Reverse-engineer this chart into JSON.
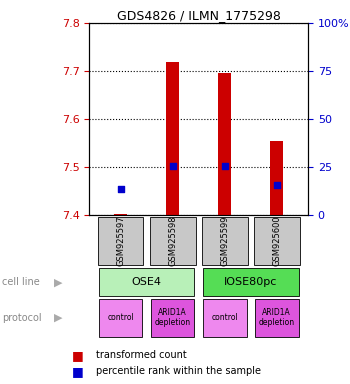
{
  "title": "GDS4826 / ILMN_1775298",
  "samples": [
    "GSM925597",
    "GSM925598",
    "GSM925599",
    "GSM925600"
  ],
  "red_values": [
    7.403,
    7.718,
    7.695,
    7.555
  ],
  "blue_values": [
    7.454,
    7.502,
    7.502,
    7.463
  ],
  "ylim": [
    7.4,
    7.8
  ],
  "yticks_left": [
    7.4,
    7.5,
    7.6,
    7.7,
    7.8
  ],
  "yticks_right": [
    0,
    25,
    50,
    75,
    100
  ],
  "ytick_labels_right": [
    "0",
    "25",
    "50",
    "75",
    "100%"
  ],
  "bar_bottom": 7.4,
  "cell_line_labels": [
    "OSE4",
    "IOSE80pc"
  ],
  "cell_line_spans": [
    [
      0,
      2
    ],
    [
      2,
      4
    ]
  ],
  "cell_line_colors": [
    "#b8f0b8",
    "#55dd55"
  ],
  "protocol_labels": [
    "control",
    "ARID1A\ndepletion",
    "control",
    "ARID1A\ndepletion"
  ],
  "protocol_colors": [
    "#ee88ee",
    "#dd55dd",
    "#ee88ee",
    "#dd55dd"
  ],
  "bar_color": "#cc0000",
  "dot_color": "#0000cc",
  "bar_width": 0.25,
  "dot_size": 25,
  "legend_red": "transformed count",
  "legend_blue": "percentile rank within the sample",
  "left_color": "#cc0000",
  "right_color": "#0000cc",
  "sample_box_color": "#c8c8c8",
  "sample_text_color": "#000000",
  "n_samples": 4
}
